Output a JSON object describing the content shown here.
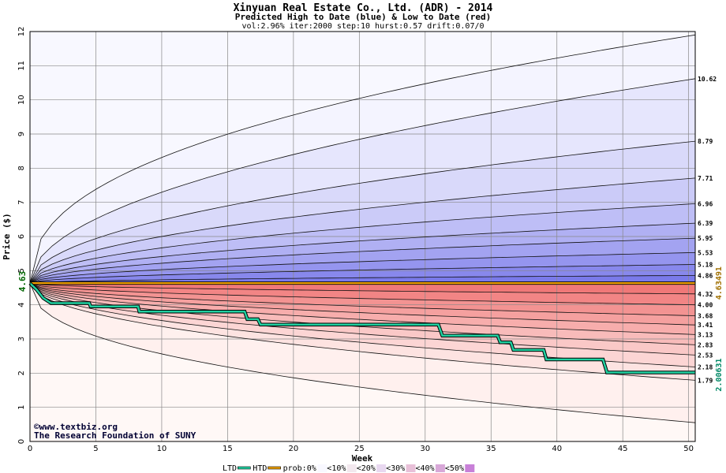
{
  "chart_data": {
    "type": "area",
    "title": "Xinyuan Real Estate Co., Ltd. (ADR) - 2014",
    "subtitle": "Predicted High to Date (blue) &  Low to Date (red)",
    "params": "vol:2.96% iter:2000 step:10 hurst:0.57 drift:0.07/0",
    "xlabel": "Week",
    "ylabel": "Price ($)",
    "xlim": [
      0,
      50.5
    ],
    "ylim": [
      0,
      12
    ],
    "xticks": [
      0,
      5,
      10,
      15,
      20,
      25,
      30,
      35,
      40,
      45,
      50
    ],
    "yticks": [
      0,
      1,
      2,
      3,
      4,
      5,
      6,
      7,
      8,
      9,
      10,
      11,
      12
    ],
    "grid": true,
    "start_price": 4.63,
    "start_label": "4.63",
    "colors": {
      "blue_far": "#f4f4ff",
      "blue_near": "#7a7aea",
      "red_far": "#fff0ee",
      "red_near": "#f07878",
      "htd": "#20d0a0",
      "ltd_bar": "#f0a000"
    },
    "blue_end_labels": [
      "10.62",
      "8.79",
      "7.71",
      "6.96",
      "6.39",
      "5.95",
      "5.53",
      "5.18",
      "4.86"
    ],
    "red_end_labels": [
      "4.32",
      "4.00",
      "3.68",
      "3.41",
      "3.13",
      "2.83",
      "2.53",
      "2.18",
      "1.79"
    ],
    "envelope_upper_top": 11.9,
    "envelope_lower_bottom": 0.55,
    "upper_lines": [
      {
        "name": "p1",
        "end": 11.9
      },
      {
        "name": "p10",
        "end": 10.62
      },
      {
        "name": "p20",
        "end": 8.79
      },
      {
        "name": "p30",
        "end": 7.71
      },
      {
        "name": "p40",
        "end": 6.96
      },
      {
        "name": "p45",
        "end": 6.39
      },
      {
        "name": "p50",
        "end": 5.95
      },
      {
        "name": "p55",
        "end": 5.53
      },
      {
        "name": "p60",
        "end": 5.18
      },
      {
        "name": "p65",
        "end": 4.86
      }
    ],
    "lower_lines": [
      {
        "name": "p35",
        "end": 4.32
      },
      {
        "name": "p40",
        "end": 4.0
      },
      {
        "name": "p45",
        "end": 3.68
      },
      {
        "name": "p50",
        "end": 3.41
      },
      {
        "name": "p55",
        "end": 3.13
      },
      {
        "name": "p60",
        "end": 2.83
      },
      {
        "name": "p70",
        "end": 2.53
      },
      {
        "name": "p80",
        "end": 2.18
      },
      {
        "name": "p90",
        "end": 1.79
      },
      {
        "name": "p99",
        "end": 0.55
      }
    ],
    "ltd_series": {
      "name": "LTD",
      "points": [
        [
          0,
          4.63
        ],
        [
          0.5,
          4.45
        ],
        [
          1,
          4.2
        ],
        [
          1.6,
          4.05
        ],
        [
          4.5,
          4.05
        ],
        [
          4.6,
          3.95
        ],
        [
          8.2,
          3.95
        ],
        [
          8.3,
          3.8
        ],
        [
          16.3,
          3.8
        ],
        [
          16.5,
          3.58
        ],
        [
          17.3,
          3.58
        ],
        [
          17.5,
          3.42
        ],
        [
          31,
          3.42
        ],
        [
          31.3,
          3.1
        ],
        [
          35.5,
          3.1
        ],
        [
          35.7,
          2.9
        ],
        [
          36.5,
          2.9
        ],
        [
          36.7,
          2.68
        ],
        [
          39,
          2.68
        ],
        [
          39.2,
          2.4
        ],
        [
          43.5,
          2.4
        ],
        [
          43.8,
          2.02
        ],
        [
          50.5,
          2.02
        ]
      ],
      "end_label": "2.00631"
    },
    "htd_level": {
      "name": "HTD",
      "value": 4.6349,
      "end_label": "4.63491"
    },
    "credit_lines": [
      "©www.textbiz.org",
      "The Research Foundation of SUNY"
    ],
    "legend": [
      "LTD",
      "HTD",
      "prob:0%",
      "<10%",
      "<20%",
      "<30%",
      "<40%",
      "<50%"
    ]
  }
}
